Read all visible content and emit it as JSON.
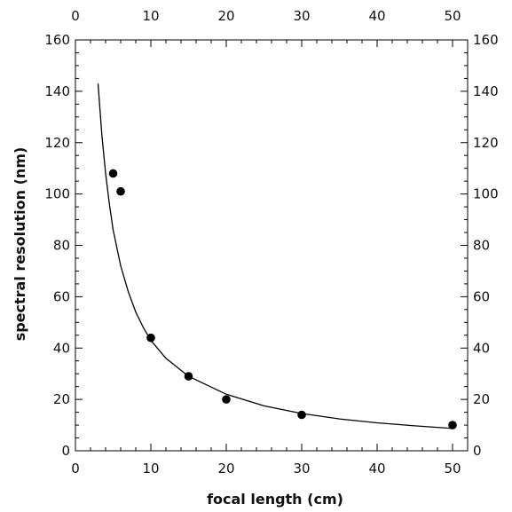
{
  "chart_data": {
    "type": "scatter",
    "title": "",
    "xlabel": "focal length (cm)",
    "ylabel": "spectral resolution (nm)",
    "xlim": [
      0,
      52
    ],
    "ylim": [
      0,
      160
    ],
    "x_ticks": [
      0,
      10,
      20,
      30,
      40,
      50
    ],
    "y_ticks": [
      0,
      20,
      40,
      60,
      80,
      100,
      120,
      140,
      160
    ],
    "x_minor_step": 2,
    "y_minor_step": 5,
    "grid": false,
    "mirror_axes": true,
    "legend": "none",
    "series": [
      {
        "kind": "points",
        "color": "#000000",
        "x": [
          5,
          6,
          10,
          15,
          20,
          30,
          50
        ],
        "y": [
          108,
          101,
          44,
          29,
          20,
          14,
          10
        ]
      },
      {
        "kind": "line",
        "color": "#000000",
        "x": [
          3,
          3.5,
          4,
          4.5,
          5,
          6,
          7,
          8,
          9,
          10,
          12,
          15,
          20,
          25,
          30,
          35,
          40,
          45,
          50
        ],
        "y": [
          143,
          123,
          108,
          96,
          86,
          72,
          62,
          54,
          48,
          43,
          36,
          29,
          22,
          17.5,
          14.5,
          12.4,
          10.9,
          9.7,
          8.7
        ]
      }
    ]
  }
}
